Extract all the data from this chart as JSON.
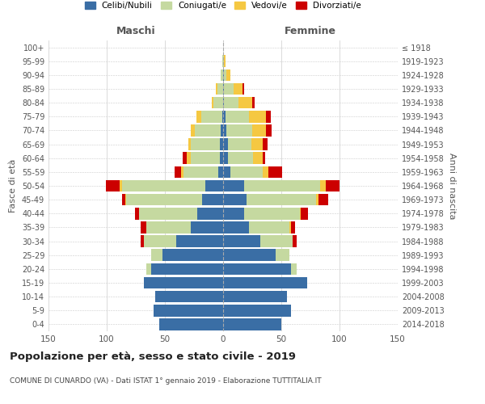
{
  "age_groups": [
    "0-4",
    "5-9",
    "10-14",
    "15-19",
    "20-24",
    "25-29",
    "30-34",
    "35-39",
    "40-44",
    "45-49",
    "50-54",
    "55-59",
    "60-64",
    "65-69",
    "70-74",
    "75-79",
    "80-84",
    "85-89",
    "90-94",
    "95-99",
    "100+"
  ],
  "birth_years": [
    "2014-2018",
    "2009-2013",
    "2004-2008",
    "1999-2003",
    "1994-1998",
    "1989-1993",
    "1984-1988",
    "1979-1983",
    "1974-1978",
    "1969-1973",
    "1964-1968",
    "1959-1963",
    "1954-1958",
    "1949-1953",
    "1944-1948",
    "1939-1943",
    "1934-1938",
    "1929-1933",
    "1924-1928",
    "1919-1923",
    "≤ 1918"
  ],
  "maschi": {
    "celibi": [
      55,
      60,
      58,
      68,
      62,
      52,
      40,
      28,
      22,
      18,
      15,
      4,
      3,
      3,
      2,
      1,
      0,
      0,
      0,
      0,
      0
    ],
    "coniugati": [
      0,
      0,
      0,
      0,
      4,
      10,
      28,
      38,
      50,
      65,
      72,
      30,
      25,
      25,
      22,
      18,
      8,
      5,
      2,
      1,
      0
    ],
    "vedovi": [
      0,
      0,
      0,
      0,
      0,
      0,
      0,
      0,
      0,
      1,
      2,
      2,
      3,
      2,
      4,
      4,
      2,
      1,
      0,
      0,
      0
    ],
    "divorziati": [
      0,
      0,
      0,
      0,
      0,
      0,
      3,
      5,
      4,
      3,
      12,
      6,
      4,
      0,
      0,
      0,
      0,
      0,
      0,
      0,
      0
    ]
  },
  "femmine": {
    "celibi": [
      50,
      58,
      55,
      72,
      58,
      45,
      32,
      22,
      18,
      20,
      18,
      6,
      4,
      4,
      3,
      2,
      1,
      1,
      1,
      0,
      0
    ],
    "coniugati": [
      0,
      0,
      0,
      0,
      5,
      12,
      28,
      35,
      48,
      60,
      65,
      28,
      22,
      20,
      22,
      20,
      12,
      8,
      2,
      1,
      0
    ],
    "vedovi": [
      0,
      0,
      0,
      0,
      0,
      0,
      0,
      1,
      1,
      2,
      5,
      5,
      8,
      10,
      12,
      15,
      12,
      8,
      3,
      1,
      0
    ],
    "divorziati": [
      0,
      0,
      0,
      0,
      0,
      0,
      3,
      4,
      6,
      8,
      12,
      12,
      2,
      4,
      5,
      4,
      2,
      1,
      0,
      0,
      0
    ]
  },
  "colors": {
    "celibi": "#3a6ea5",
    "coniugati": "#c5d9a0",
    "vedovi": "#f5c842",
    "divorziati": "#cc0000"
  },
  "xlim": 150,
  "title": "Popolazione per età, sesso e stato civile - 2019",
  "subtitle": "COMUNE DI CUNARDO (VA) - Dati ISTAT 1° gennaio 2019 - Elaborazione TUTTITALIA.IT",
  "ylabel_left": "Fasce di età",
  "ylabel_right": "Anni di nascita",
  "xlabel_maschi": "Maschi",
  "xlabel_femmine": "Femmine",
  "legend_labels": [
    "Celibi/Nubili",
    "Coniugati/e",
    "Vedovi/e",
    "Divorziati/e"
  ],
  "background_color": "#ffffff",
  "grid_color": "#cccccc"
}
